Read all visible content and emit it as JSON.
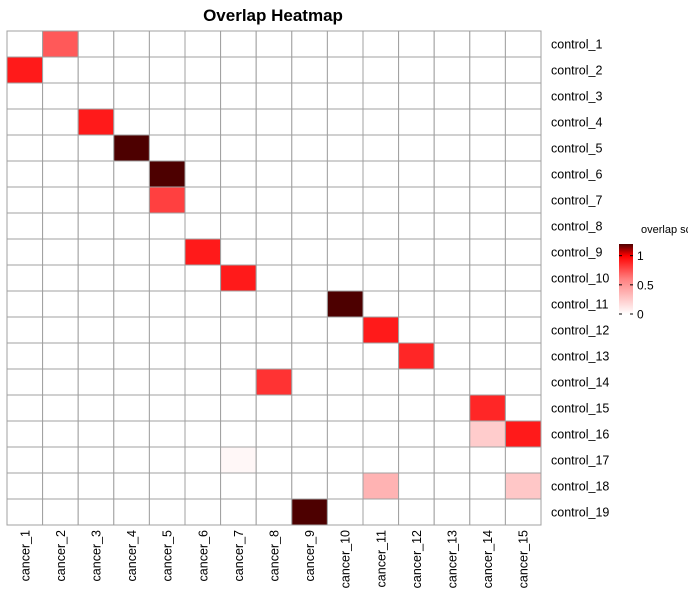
{
  "chart_data": {
    "type": "heatmap",
    "title": "Overlap Heatmap",
    "rows": [
      "control_1",
      "control_2",
      "control_3",
      "control_4",
      "control_5",
      "control_6",
      "control_7",
      "control_8",
      "control_9",
      "control_10",
      "control_11",
      "control_12",
      "control_13",
      "control_14",
      "control_15",
      "control_16",
      "control_17",
      "control_18",
      "control_19"
    ],
    "columns": [
      "cancer_1",
      "cancer_2",
      "cancer_3",
      "cancer_4",
      "cancer_5",
      "cancer_6",
      "cancer_7",
      "cancer_8",
      "cancer_9",
      "cancer_10",
      "cancer_11",
      "cancer_12",
      "cancer_13",
      "cancer_14",
      "cancer_15"
    ],
    "values": [
      [
        0,
        0.65,
        0,
        0,
        0,
        0,
        0,
        0,
        0,
        0,
        0,
        0,
        0,
        0,
        0
      ],
      [
        0.9,
        0,
        0,
        0,
        0,
        0,
        0,
        0,
        0,
        0,
        0,
        0,
        0,
        0,
        0
      ],
      [
        0,
        0,
        0,
        0,
        0,
        0,
        0,
        0,
        0,
        0,
        0,
        0,
        0,
        0,
        0
      ],
      [
        0,
        0,
        0.9,
        0,
        0,
        0,
        0,
        0,
        0,
        0,
        0,
        0,
        0,
        0,
        0
      ],
      [
        0,
        0,
        0,
        1.2,
        0,
        0,
        0,
        0,
        0,
        0,
        0,
        0,
        0,
        0,
        0
      ],
      [
        0,
        0,
        0,
        0,
        1.2,
        0,
        0,
        0,
        0,
        0,
        0,
        0,
        0,
        0,
        0
      ],
      [
        0,
        0,
        0,
        0,
        0.75,
        0,
        0,
        0,
        0,
        0,
        0,
        0,
        0,
        0,
        0
      ],
      [
        0,
        0,
        0,
        0,
        0,
        0,
        0,
        0,
        0,
        0,
        0,
        0,
        0,
        0,
        0
      ],
      [
        0,
        0,
        0,
        0,
        0,
        0.9,
        0,
        0,
        0,
        0,
        0,
        0,
        0,
        0,
        0
      ],
      [
        0,
        0,
        0,
        0,
        0,
        0,
        0.9,
        0,
        0,
        0,
        0,
        0,
        0,
        0,
        0
      ],
      [
        0,
        0,
        0,
        0,
        0,
        0,
        0,
        0,
        0,
        1.2,
        0,
        0,
        0,
        0,
        0
      ],
      [
        0,
        0,
        0,
        0,
        0,
        0,
        0,
        0,
        0,
        0,
        0.9,
        0,
        0,
        0,
        0
      ],
      [
        0,
        0,
        0,
        0,
        0,
        0,
        0,
        0,
        0,
        0,
        0,
        0.85,
        0,
        0,
        0
      ],
      [
        0,
        0,
        0,
        0,
        0,
        0,
        0,
        0.8,
        0,
        0,
        0,
        0,
        0,
        0,
        0
      ],
      [
        0,
        0,
        0,
        0,
        0,
        0,
        0,
        0,
        0,
        0,
        0,
        0,
        0,
        0.85,
        0
      ],
      [
        0,
        0,
        0,
        0,
        0,
        0,
        0,
        0,
        0,
        0,
        0,
        0,
        0,
        0.2,
        0.9
      ],
      [
        0,
        0,
        0,
        0,
        0,
        0,
        0.03,
        0,
        0,
        0,
        0,
        0,
        0,
        0,
        0
      ],
      [
        0,
        0,
        0,
        0,
        0,
        0,
        0,
        0,
        0,
        0,
        0.3,
        0,
        0,
        0,
        0.22
      ],
      [
        0,
        0,
        0,
        0,
        0,
        0,
        0,
        0,
        1.2,
        0,
        0,
        0,
        0,
        0,
        0
      ]
    ],
    "legend": {
      "title": "overlap score",
      "ticks": [
        0,
        0.5,
        1
      ],
      "tick_labels": [
        "0",
        "0.5",
        "1"
      ],
      "range": [
        0,
        1.2
      ],
      "placement": "right"
    },
    "colors": {
      "low": "#ffffff",
      "mid": "#ff0000",
      "high": "#4d0000",
      "grid": "#a0a0a0"
    },
    "grid": true
  }
}
